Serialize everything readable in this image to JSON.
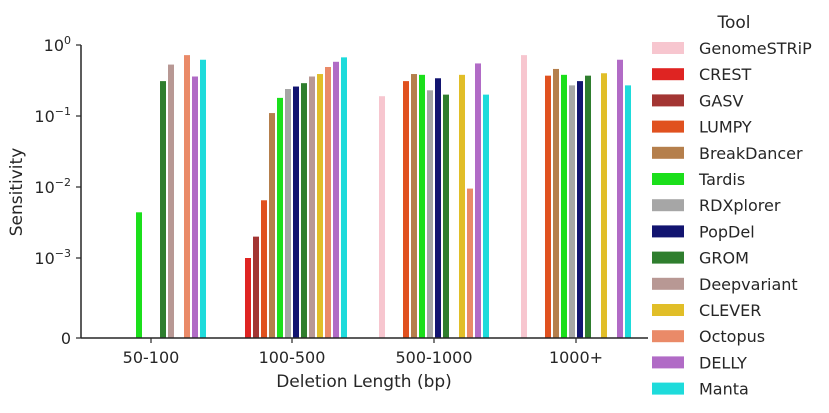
{
  "chart_data": {
    "type": "bar",
    "xlabel": "Deletion Length (bp)",
    "ylabel": "Sensitivity",
    "yscale": "symlog",
    "ylim": [
      0,
      1
    ],
    "yticks": [
      {
        "value": 0,
        "label": "0"
      },
      {
        "value": 0.001,
        "label": "10",
        "exp": "−3"
      },
      {
        "value": 0.01,
        "label": "10",
        "exp": "−2"
      },
      {
        "value": 0.1,
        "label": "10",
        "exp": "−1"
      },
      {
        "value": 1,
        "label": "10",
        "exp": "0"
      }
    ],
    "categories": [
      "50-100",
      "100-500",
      "500-1000",
      "1000+"
    ],
    "legend_title": "Tool",
    "legend_position": "right",
    "series": [
      {
        "name": "GenomeSTRiP",
        "color": "#f7c6cf",
        "values": [
          null,
          null,
          0.19,
          0.72
        ]
      },
      {
        "name": "CREST",
        "color": "#df2422",
        "values": [
          null,
          0.001,
          null,
          null
        ]
      },
      {
        "name": "GASV",
        "color": "#a33533",
        "values": [
          null,
          0.002,
          null,
          null
        ]
      },
      {
        "name": "LUMPY",
        "color": "#e0511f",
        "values": [
          null,
          0.0065,
          0.31,
          0.37
        ]
      },
      {
        "name": "BreakDancer",
        "color": "#b57f4c",
        "values": [
          null,
          0.11,
          0.39,
          0.46
        ]
      },
      {
        "name": "Tardis",
        "color": "#1bdf1b",
        "values": [
          0.0044,
          0.18,
          0.38,
          0.38
        ]
      },
      {
        "name": "RDXplorer",
        "color": "#a6a6a6",
        "values": [
          null,
          0.24,
          0.23,
          0.27
        ]
      },
      {
        "name": "PopDel",
        "color": "#121470",
        "values": [
          null,
          0.26,
          0.34,
          0.31
        ]
      },
      {
        "name": "GROM",
        "color": "#2f7e2e",
        "values": [
          0.31,
          0.29,
          0.2,
          0.37
        ]
      },
      {
        "name": "Deepvariant",
        "color": "#b89894",
        "values": [
          0.53,
          0.36,
          null,
          null
        ]
      },
      {
        "name": "CLEVER",
        "color": "#e1be28",
        "values": [
          null,
          0.39,
          0.38,
          0.4
        ]
      },
      {
        "name": "Octopus",
        "color": "#ea8a68",
        "values": [
          0.72,
          0.49,
          0.0095,
          null
        ]
      },
      {
        "name": "DELLY",
        "color": "#b16bc6",
        "values": [
          0.36,
          0.58,
          0.55,
          0.62
        ]
      },
      {
        "name": "Manta",
        "color": "#1edbdb",
        "values": [
          0.62,
          0.67,
          0.2,
          0.27
        ]
      }
    ]
  }
}
